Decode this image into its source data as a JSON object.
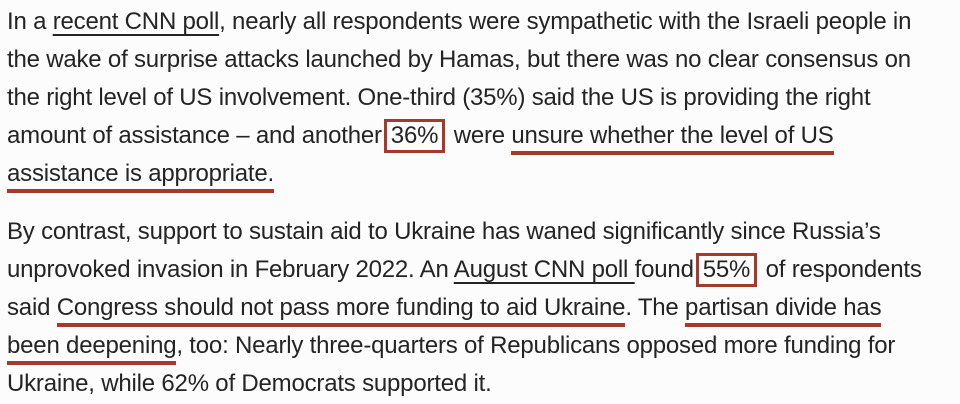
{
  "page": {
    "background_color": "#fcfcfc",
    "text_color": "#242424",
    "annotation_red": "#a5392c",
    "link_underline_color": "#242424"
  },
  "article": {
    "paragraphs": [
      {
        "lines": [
          {
            "segments": [
              {
                "style": "plain",
                "text": "In a "
              },
              {
                "style": "link",
                "name": "recent-cnn-poll-link",
                "text": "recent CNN poll"
              },
              {
                "style": "plain",
                "text": ", nearly all respondents were sympathetic with the Israeli people in"
              }
            ]
          },
          {
            "segments": [
              {
                "style": "plain",
                "text": "the wake of surprise attacks launched by Hamas, but there was no clear consensus on"
              }
            ]
          },
          {
            "segments": [
              {
                "style": "plain",
                "text": "the right level of US involvement. One-third (35%) said the US is providing the right"
              }
            ]
          },
          {
            "segments": [
              {
                "style": "plain",
                "text": "amount of assistance – and another"
              },
              {
                "style": "redbox",
                "name": "36-percent-highlight-box",
                "text": "36%"
              },
              {
                "style": "plain",
                "text": " were "
              },
              {
                "style": "redline",
                "name": "red-underline-annotation",
                "text": "unsure whether the level of US"
              }
            ]
          },
          {
            "segments": [
              {
                "style": "redline",
                "name": "red-underline-annotation",
                "text": "assistance is appropriate."
              }
            ]
          }
        ]
      },
      {
        "lines": [
          {
            "segments": [
              {
                "style": "plain",
                "text": "By contrast, support to sustain aid to Ukraine has waned significantly since Russia’s"
              }
            ]
          },
          {
            "segments": [
              {
                "style": "plain",
                "text": "unprovoked invasion in February 2022. An "
              },
              {
                "style": "link",
                "name": "august-cnn-poll-link",
                "text": "August CNN poll "
              },
              {
                "style": "plain",
                "text": "found"
              },
              {
                "style": "redbox",
                "name": "55-percent-highlight-box",
                "text": "55%"
              },
              {
                "style": "plain",
                "text": " of respondents"
              }
            ]
          },
          {
            "segments": [
              {
                "style": "plain",
                "text": "said "
              },
              {
                "style": "redline",
                "name": "red-underline-annotation",
                "text": "Congress should not pass more funding to aid Ukraine"
              },
              {
                "style": "plain",
                "text": ". The "
              },
              {
                "style": "redline",
                "name": "red-underline-annotation",
                "text": "partisan divide has"
              }
            ]
          },
          {
            "segments": [
              {
                "style": "redline",
                "name": "red-underline-annotation",
                "text": "been deepening"
              },
              {
                "style": "plain",
                "text": ", too: Nearly three-quarters of Republicans opposed more funding for"
              }
            ]
          },
          {
            "segments": [
              {
                "style": "plain",
                "text": "Ukraine, while 62% of Democrats supported it."
              }
            ]
          }
        ]
      }
    ]
  }
}
